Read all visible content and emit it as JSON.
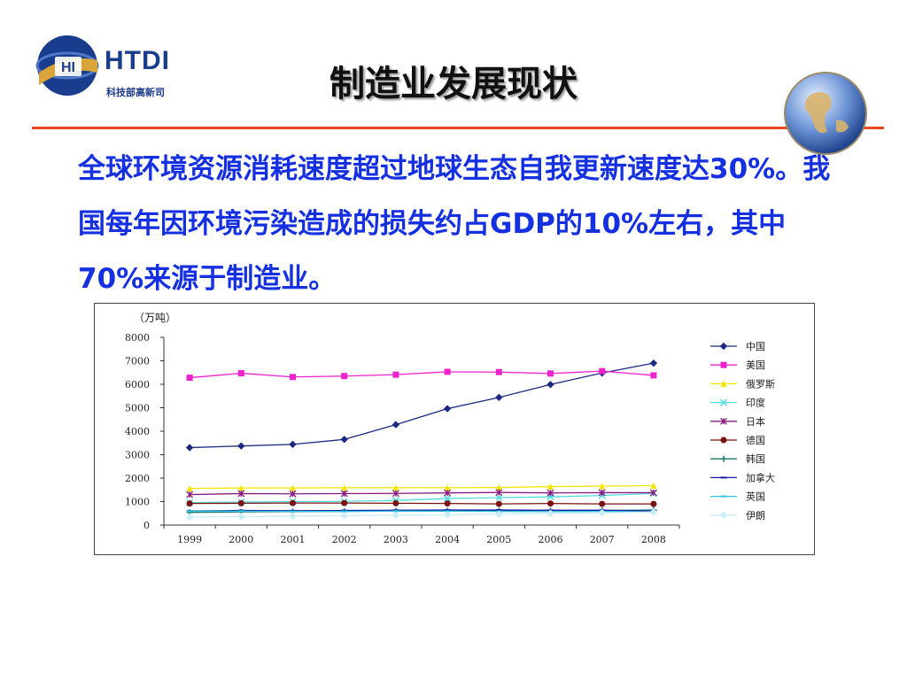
{
  "logo": {
    "name": "HTDI",
    "sub": "科技部高新司",
    "emblem_letters": "HI",
    "colors": {
      "blue": "#1a3c8c",
      "gold": "#d9a53a"
    }
  },
  "slide": {
    "title": "制造业发展现状",
    "body": "全球环境资源消耗速度超过地球生态自我更新速度达30%。我国每年因环境污染造成的损失约占GDP的10%左右，其中70%来源于制造业。",
    "accent_color": "#e8461f",
    "text_color": "#1530e0"
  },
  "chart_data": {
    "type": "line",
    "ylabel": "（万吨）",
    "ylim": [
      0,
      8000
    ],
    "yticks": [
      0,
      1000,
      2000,
      3000,
      4000,
      5000,
      6000,
      7000,
      8000
    ],
    "categories": [
      "1999",
      "2000",
      "2001",
      "2002",
      "2003",
      "2004",
      "2005",
      "2006",
      "2007",
      "2008"
    ],
    "legend_position": "right",
    "series": [
      {
        "name": "中国",
        "color": "#1b2a80",
        "marker": "diamond",
        "values": [
          3300,
          3370,
          3440,
          3650,
          4280,
          4960,
          5440,
          5990,
          6480,
          6900
        ]
      },
      {
        "name": "美国",
        "color": "#ee22cc",
        "marker": "square",
        "values": [
          6280,
          6470,
          6310,
          6350,
          6410,
          6530,
          6520,
          6460,
          6560,
          6380
        ]
      },
      {
        "name": "俄罗斯",
        "color": "#f2e600",
        "marker": "triangle",
        "values": [
          1560,
          1580,
          1580,
          1590,
          1590,
          1590,
          1600,
          1640,
          1660,
          1680
        ]
      },
      {
        "name": "印度",
        "color": "#50dde0",
        "marker": "x",
        "values": [
          950,
          980,
          1000,
          1010,
          1050,
          1130,
          1170,
          1200,
          1260,
          1350
        ]
      },
      {
        "name": "日本",
        "color": "#8a1a80",
        "marker": "star",
        "values": [
          1300,
          1340,
          1330,
          1340,
          1350,
          1370,
          1390,
          1370,
          1380,
          1380
        ]
      },
      {
        "name": "德国",
        "color": "#7a1212",
        "marker": "circle",
        "values": [
          920,
          930,
          940,
          940,
          930,
          920,
          900,
          920,
          900,
          900
        ]
      },
      {
        "name": "韩国",
        "color": "#147a70",
        "marker": "plus",
        "values": [
          540,
          560,
          570,
          580,
          600,
          610,
          610,
          620,
          620,
          640
        ]
      },
      {
        "name": "加拿大",
        "color": "#1a1aa8",
        "marker": "dash",
        "values": [
          600,
          620,
          610,
          620,
          630,
          640,
          640,
          630,
          630,
          600
        ]
      },
      {
        "name": "英国",
        "color": "#30c8e0",
        "marker": "dash",
        "values": [
          590,
          590,
          580,
          580,
          590,
          590,
          580,
          570,
          580,
          560
        ]
      },
      {
        "name": "伊朗",
        "color": "#c8eef8",
        "marker": "diamond",
        "values": [
          340,
          360,
          380,
          400,
          420,
          440,
          470,
          500,
          520,
          560
        ]
      }
    ]
  }
}
